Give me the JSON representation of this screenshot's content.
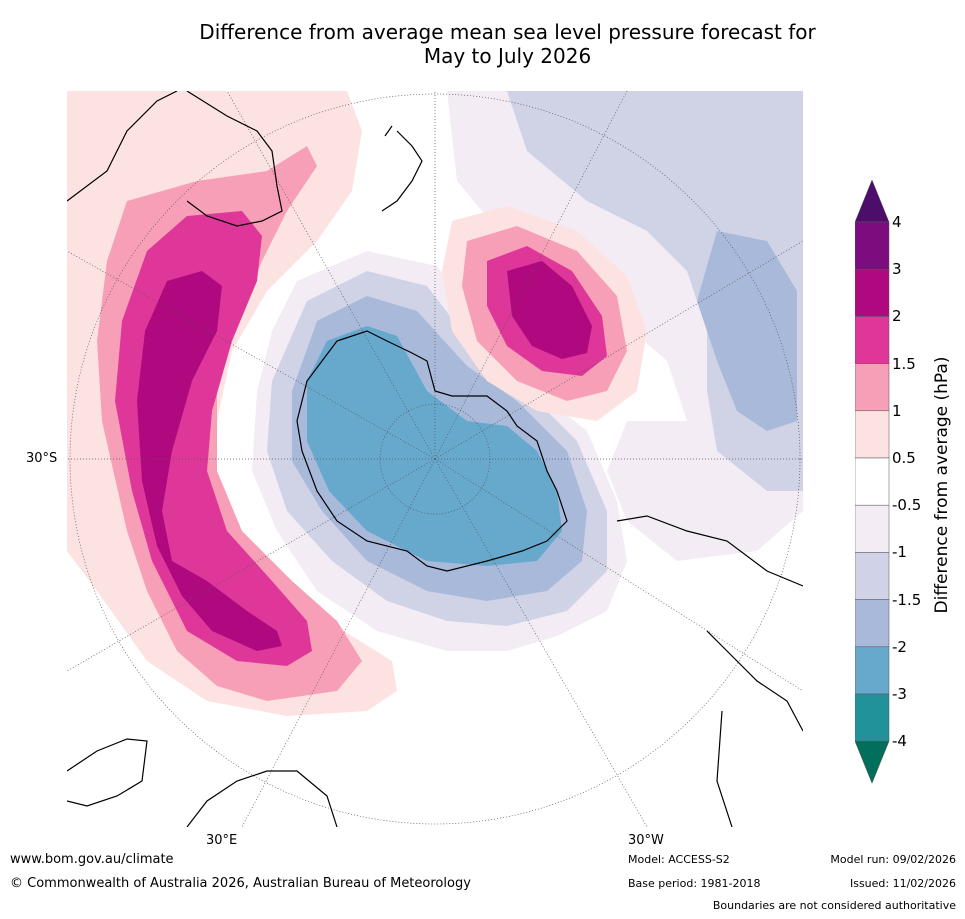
{
  "title_line1": "Difference from average mean sea level pressure forecast for",
  "title_line2": "May to July 2026",
  "map": {
    "projection": "south-polar stereographic",
    "axis_labels": {
      "left": "30°S",
      "bottom_left": "30°E",
      "bottom_right": "30°W"
    }
  },
  "colorbar": {
    "title": "Difference from average (hPa)",
    "ticks": [
      "4",
      "3",
      "2",
      "1.5",
      "1",
      "0.5",
      "-0.5",
      "-1",
      "-1.5",
      "-2",
      "-3",
      "-4"
    ],
    "colors": [
      "#4d0d6b",
      "#7d0d7e",
      "#b0097f",
      "#de3799",
      "#f89fb8",
      "#fde2e2",
      "#ffffff",
      "#f3ecf5",
      "#d0d2e6",
      "#a8b9d9",
      "#67a8cd",
      "#21929a",
      "#026f5c"
    ]
  },
  "footer": {
    "url": "www.bom.gov.au/climate",
    "copyright": "© Commonwealth of Australia 2026, Australian Bureau of Meteorology",
    "model": "Model: ACCESS-S2",
    "base_period": "Base period: 1981-2018",
    "model_run": "Model run: 09/02/2026",
    "issued": "Issued: 11/02/2026",
    "disclaimer": "Boundaries are not considered authoritative"
  }
}
